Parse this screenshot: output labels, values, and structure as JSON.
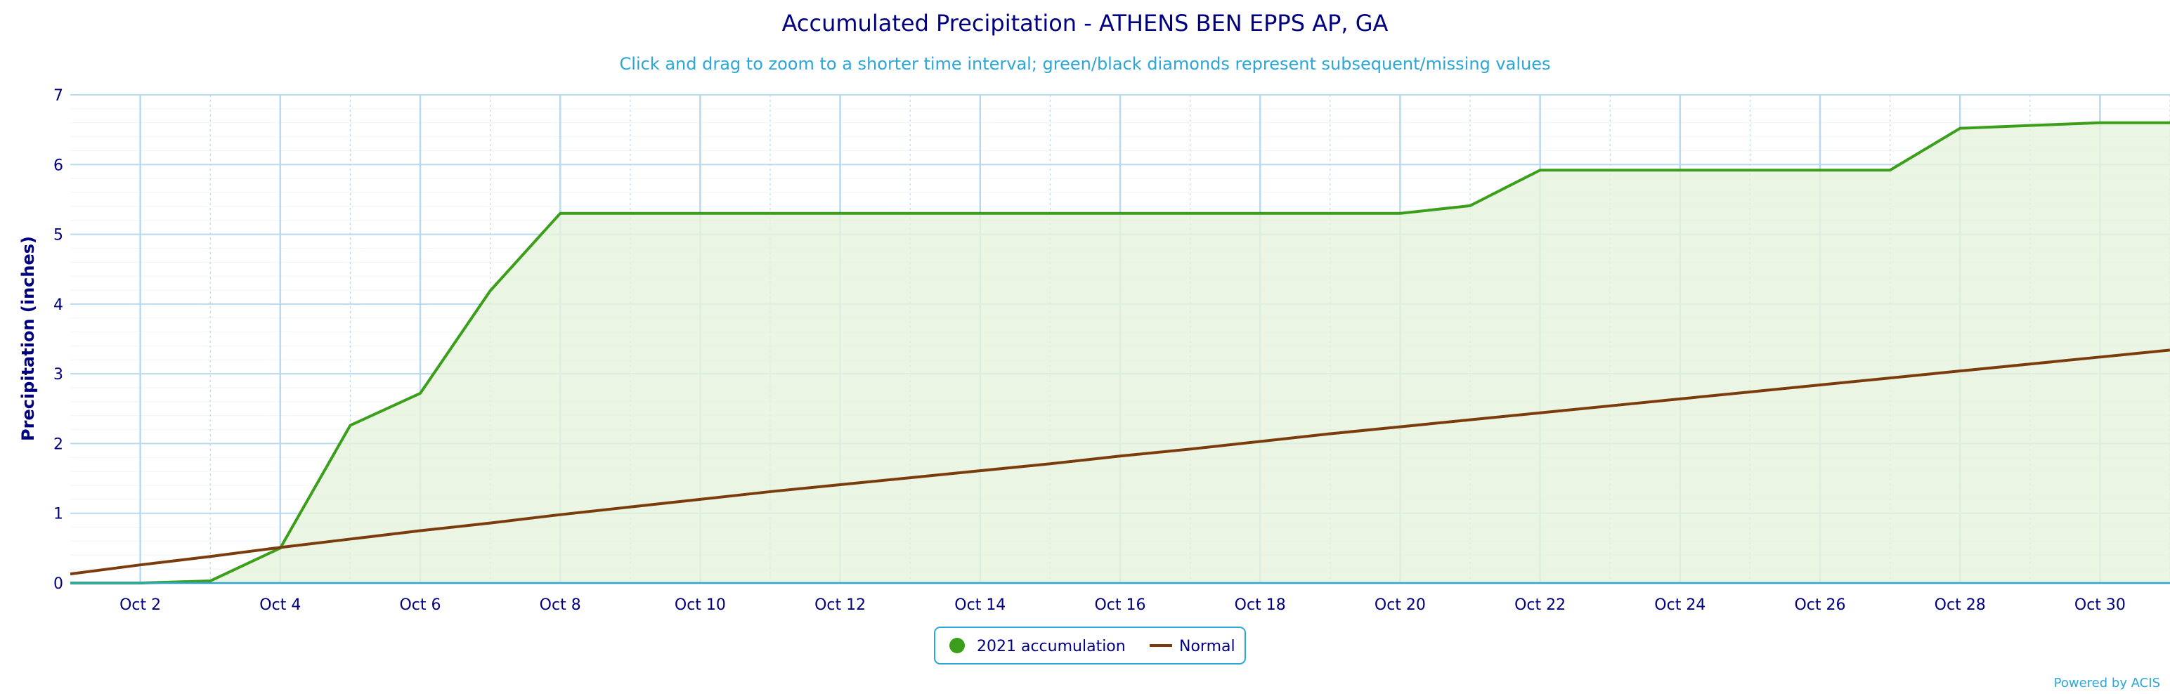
{
  "chart_data": {
    "type": "area",
    "title": "Accumulated Precipitation - ATHENS BEN EPPS AP, GA",
    "subtitle": "Click and drag to zoom to a shorter time interval; green/black diamonds represent subsequent/missing values",
    "xlabel": "",
    "ylabel": "Precipitation (inches)",
    "x_start": "2021-10-01",
    "x_end": "2021-10-31",
    "x_ticks": [
      "Oct 2",
      "Oct 4",
      "Oct 6",
      "Oct 8",
      "Oct 10",
      "Oct 12",
      "Oct 14",
      "Oct 16",
      "Oct 18",
      "Oct 20",
      "Oct 22",
      "Oct 24",
      "Oct 26",
      "Oct 28",
      "Oct 30"
    ],
    "y_ticks": [
      "0",
      "1",
      "2",
      "3",
      "4",
      "5",
      "6",
      "7"
    ],
    "ylim": [
      0,
      7
    ],
    "grid": true,
    "legend_position": "bottom-center",
    "series": [
      {
        "name": "2021 accumulation",
        "color": "#3c9f1b",
        "fill": "#e6f2dc",
        "x": [
          "2021-10-01",
          "2021-10-02",
          "2021-10-03",
          "2021-10-04",
          "2021-10-05",
          "2021-10-06",
          "2021-10-07",
          "2021-10-08",
          "2021-10-09",
          "2021-10-10",
          "2021-10-11",
          "2021-10-12",
          "2021-10-13",
          "2021-10-14",
          "2021-10-15",
          "2021-10-16",
          "2021-10-17",
          "2021-10-18",
          "2021-10-19",
          "2021-10-20",
          "2021-10-21",
          "2021-10-22",
          "2021-10-23",
          "2021-10-24",
          "2021-10-25",
          "2021-10-26",
          "2021-10-27",
          "2021-10-28",
          "2021-10-29",
          "2021-10-30",
          "2021-10-31"
        ],
        "values": [
          0.0,
          0.0,
          0.03,
          0.5,
          2.26,
          2.72,
          4.19,
          5.3,
          5.3,
          5.3,
          5.3,
          5.3,
          5.3,
          5.3,
          5.3,
          5.3,
          5.3,
          5.3,
          5.3,
          5.3,
          5.41,
          5.92,
          5.92,
          5.92,
          5.92,
          5.92,
          5.92,
          6.52,
          6.56,
          6.6,
          6.6
        ]
      },
      {
        "name": "Normal",
        "color": "#7a3c0c",
        "x": [
          "2021-10-01",
          "2021-10-02",
          "2021-10-03",
          "2021-10-04",
          "2021-10-05",
          "2021-10-06",
          "2021-10-07",
          "2021-10-08",
          "2021-10-09",
          "2021-10-10",
          "2021-10-11",
          "2021-10-12",
          "2021-10-13",
          "2021-10-14",
          "2021-10-15",
          "2021-10-16",
          "2021-10-17",
          "2021-10-18",
          "2021-10-19",
          "2021-10-20",
          "2021-10-21",
          "2021-10-22",
          "2021-10-23",
          "2021-10-24",
          "2021-10-25",
          "2021-10-26",
          "2021-10-27",
          "2021-10-28",
          "2021-10-29",
          "2021-10-30",
          "2021-10-31"
        ],
        "values": [
          0.13,
          0.26,
          0.38,
          0.51,
          0.63,
          0.75,
          0.86,
          0.98,
          1.09,
          1.2,
          1.31,
          1.41,
          1.51,
          1.61,
          1.71,
          1.82,
          1.92,
          2.03,
          2.14,
          2.24,
          2.34,
          2.44,
          2.54,
          2.64,
          2.74,
          2.84,
          2.94,
          3.04,
          3.14,
          3.24,
          3.34
        ]
      }
    ],
    "credit": "Powered by ACIS"
  },
  "colors": {
    "title": "#000080",
    "subtitle": "#2aa6d9",
    "grid": "#b8d9ee",
    "axis": "#2aa6d9",
    "legend_border": "#2aa6d9"
  }
}
